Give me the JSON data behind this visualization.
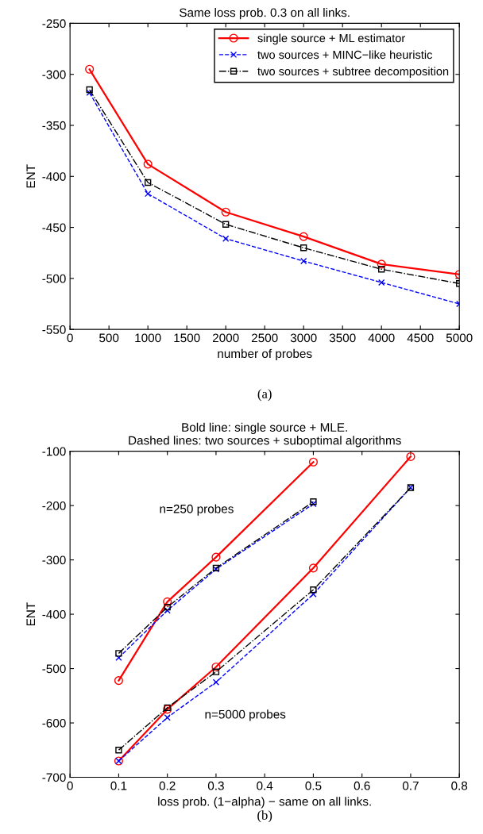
{
  "chart_data": [
    {
      "type": "line",
      "title": "Same loss prob. 0.3 on all links.",
      "xlabel": "number of probes",
      "ylabel": "ENT",
      "xlim": [
        0,
        5000
      ],
      "xticks": [
        0,
        500,
        1000,
        1500,
        2000,
        2500,
        3000,
        3500,
        4000,
        4500,
        5000
      ],
      "ylim": [
        -550,
        -250
      ],
      "yticks": [
        -550,
        -500,
        -450,
        -400,
        -350,
        -300,
        -250
      ],
      "x": [
        250,
        1000,
        2000,
        3000,
        4000,
        5000
      ],
      "grid": false,
      "legend": "top right",
      "series": [
        {
          "name": "single source + ML estimator",
          "color": "#ff0000",
          "marker": "circle",
          "line_style": "solid",
          "values": [
            -295,
            -388,
            -435,
            -459,
            -486,
            -496
          ]
        },
        {
          "name": "two sources + MINC−like heuristic",
          "color": "#0000ff",
          "marker": "cross",
          "line_style": "dashed",
          "values": [
            -318,
            -417,
            -461,
            -483,
            -504,
            -525
          ]
        },
        {
          "name": "two sources + subtree decomposition",
          "color": "#000000",
          "marker": "square",
          "line_style": "dashdot",
          "values": [
            -315,
            -406,
            -447,
            -470,
            -491,
            -505
          ]
        }
      ],
      "annotations": [
        "(a)"
      ]
    },
    {
      "type": "line",
      "title": "Bold line: single source + MLE.\nDashed lines: two sources + suboptimal algorithms",
      "xlabel": "loss prob. (1−alpha) − same on all links.",
      "ylabel": "ENT",
      "xlim": [
        0,
        0.8
      ],
      "xticks": [
        0,
        0.1,
        0.2,
        0.3,
        0.4,
        0.5,
        0.6,
        0.7,
        0.8
      ],
      "ylim": [
        -700,
        -100
      ],
      "yticks": [
        -700,
        -600,
        -500,
        -400,
        -300,
        -200,
        -100
      ],
      "grid": false,
      "series": [
        {
          "color": "#ff0000",
          "marker": "circle",
          "line_style": "solid",
          "x": [
            0.1,
            0.2,
            0.3,
            0.5
          ],
          "values": [
            -522,
            -377,
            -295,
            -120
          ]
        },
        {
          "color": "#0000ff",
          "marker": "cross",
          "line_style": "dashed",
          "x": [
            0.1,
            0.2,
            0.3,
            0.5
          ],
          "values": [
            -480,
            -393,
            -317,
            -197
          ]
        },
        {
          "color": "#000000",
          "marker": "square",
          "line_style": "dashdot",
          "x": [
            0.1,
            0.2,
            0.3,
            0.5
          ],
          "values": [
            -472,
            -387,
            -315,
            -193
          ]
        },
        {
          "color": "#ff0000",
          "marker": "circle",
          "line_style": "solid",
          "x": [
            0.1,
            0.2,
            0.3,
            0.5,
            0.7
          ],
          "values": [
            -670,
            -575,
            -497,
            -315,
            -110
          ]
        },
        {
          "color": "#0000ff",
          "marker": "cross",
          "line_style": "dashed",
          "x": [
            0.1,
            0.2,
            0.3,
            0.5,
            0.7
          ],
          "values": [
            -670,
            -590,
            -525,
            -363,
            -167
          ]
        },
        {
          "color": "#000000",
          "marker": "square",
          "line_style": "dashdot",
          "x": [
            0.1,
            0.2,
            0.3,
            0.5,
            0.7
          ],
          "values": [
            -650,
            -572,
            -506,
            -355,
            -167
          ]
        }
      ],
      "annotations": [
        "n=250 probes",
        "n=5000 probes",
        "(b)"
      ]
    }
  ]
}
